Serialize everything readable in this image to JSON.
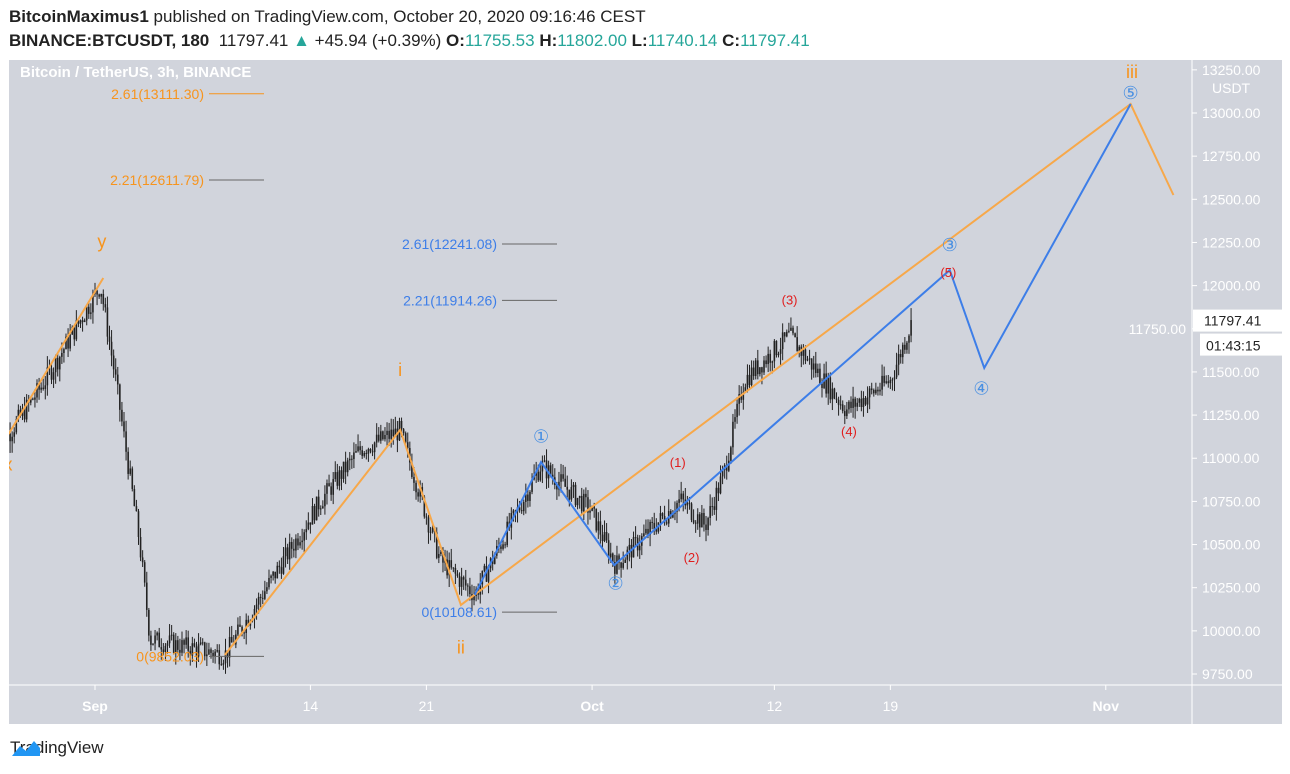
{
  "header": {
    "author": "BitcoinMaximus1",
    "published": "published on TradingView.com, October 20, 2020 09:16:46 CEST",
    "symbol": "BINANCE:BTCUSDT, 180",
    "last": "11797.41",
    "change": "+45.94 (+0.39%)",
    "o_label": "O:",
    "o": "11755.53",
    "h_label": "H:",
    "h": "11802.00",
    "l_label": "L:",
    "l": "11740.14",
    "c_label": "C:",
    "c": "11797.41"
  },
  "footer": {
    "brand": "TradingView"
  },
  "chart_data": {
    "type": "candlestick",
    "title": "Bitcoin / TetherUS, 3h, BINANCE",
    "currency": "USDT",
    "ylim": [
      9700,
      13300
    ],
    "xlim": [
      "2020-08-26",
      "2020-11-05"
    ],
    "yticks": [
      9750,
      10000,
      10250,
      10500,
      10750,
      11000,
      11250,
      11500,
      11750,
      12000,
      12250,
      12500,
      12750,
      13000,
      13250
    ],
    "ytick_labels": [
      "9750.00",
      "10000.00",
      "10250.00",
      "10500.00",
      "10750.00",
      "11000.00",
      "11250.00",
      "11500.00",
      "11750.00",
      "12000.00",
      "12250.00",
      "12500.00",
      "12750.00",
      "13000.00",
      "13250.00"
    ],
    "xticks": [
      {
        "date": "2020-09-01",
        "label": "Sep"
      },
      {
        "date": "2020-09-14",
        "label": "14"
      },
      {
        "date": "2020-09-21",
        "label": "21"
      },
      {
        "date": "2020-10-01",
        "label": "Oct"
      },
      {
        "date": "2020-10-12",
        "label": "12"
      },
      {
        "date": "2020-10-19",
        "label": "19"
      },
      {
        "date": "2020-11-01",
        "label": "Nov"
      }
    ],
    "last_price": "11797.41",
    "countdown": "01:43:15",
    "price_path": [
      [
        "2020-08-26T00",
        11500
      ],
      [
        "2020-08-26T18",
        11135
      ],
      [
        "2020-08-29T00",
        11450
      ],
      [
        "2020-09-01T08",
        12000
      ],
      [
        "2020-09-02T06",
        11450
      ],
      [
        "2020-09-03T16",
        10530
      ],
      [
        "2020-09-04T08",
        9950
      ],
      [
        "2020-09-08T20",
        9860
      ],
      [
        "2020-09-14T14",
        10750
      ],
      [
        "2020-09-17T00",
        11050
      ],
      [
        "2020-09-19T10",
        11160
      ],
      [
        "2020-09-21T20",
        10410
      ],
      [
        "2020-09-23T22",
        10210
      ],
      [
        "2020-09-27T22",
        10960
      ],
      [
        "2020-09-30T22",
        10700
      ],
      [
        "2020-10-02T10",
        10380
      ],
      [
        "2020-10-06T08",
        10760
      ],
      [
        "2020-10-07T20",
        10610
      ],
      [
        "2020-10-09T00",
        10930
      ],
      [
        "2020-10-10T04",
        11450
      ],
      [
        "2020-10-12T22",
        11710
      ],
      [
        "2020-10-16T08",
        11280
      ],
      [
        "2020-10-19T00",
        11450
      ],
      [
        "2020-10-20T08",
        11797
      ]
    ],
    "orange_lines": [
      [
        [
          "2020-08-26T00",
          11850
        ],
        [
          "2020-08-26T18",
          11135
        ],
        [
          "2020-09-01T12",
          12044
        ]
      ],
      [
        [
          "2020-09-08T20",
          9860
        ],
        [
          "2020-09-19T10",
          11164
        ],
        [
          "2020-09-23T02",
          10150
        ],
        [
          "2020-11-02T12",
          13052
        ],
        [
          "2020-11-05T02",
          12525
        ]
      ]
    ],
    "blue_lines": [
      [
        [
          "2020-09-23T22",
          10208
        ],
        [
          "2020-09-27T22",
          10978
        ],
        [
          "2020-10-02T08",
          10381
        ],
        [
          "2020-10-22T14",
          12090
        ],
        [
          "2020-10-24T16",
          11523
        ],
        [
          "2020-11-02T12",
          13052
        ]
      ]
    ],
    "orange_fibs": [
      {
        "label": "2.61(13111.30)",
        "price": 13111.3
      },
      {
        "label": "2.21(12611.79)",
        "price": 12611.79
      },
      {
        "label": "0(9852.03)",
        "price": 9852.03
      }
    ],
    "blue_fibs": [
      {
        "label": "2.61(12241.08)",
        "price": 12241.08
      },
      {
        "label": "2.21(11914.26)",
        "price": 11914.26
      },
      {
        "label": "0(10108.61)",
        "price": 10108.61
      }
    ],
    "wave_labels": [
      {
        "text": "y",
        "color": "#f7941d",
        "date": "2020-09-01T10",
        "price": 12220
      },
      {
        "text": "x",
        "color": "#f7941d",
        "date": "2020-08-26T18",
        "price": 10930
      },
      {
        "text": "i",
        "color": "#f7941d",
        "date": "2020-09-19T10",
        "price": 11475
      },
      {
        "text": "ii",
        "color": "#f7941d",
        "date": "2020-09-23T02",
        "price": 9870
      },
      {
        "text": "iii",
        "color": "#f7941d",
        "date": "2020-11-02T14",
        "price": 13270
      },
      {
        "text": "①",
        "color": "#4a90e2",
        "date": "2020-09-27T22",
        "price": 11090
      },
      {
        "text": "②",
        "color": "#4a90e2",
        "date": "2020-10-02T10",
        "price": 10240
      },
      {
        "text": "③",
        "color": "#4a90e2",
        "date": "2020-10-22T14",
        "price": 12200
      },
      {
        "text": "④",
        "color": "#4a90e2",
        "date": "2020-10-24T12",
        "price": 11370
      },
      {
        "text": "⑤",
        "color": "#4a90e2",
        "date": "2020-11-02T12",
        "price": 13160
      },
      {
        "text": "(1)",
        "color": "#e01e1e",
        "date": "2020-10-06T04",
        "price": 10950
      },
      {
        "text": "(2)",
        "color": "#e01e1e",
        "date": "2020-10-07T00",
        "price": 10400
      },
      {
        "text": "(3)",
        "color": "#e01e1e",
        "date": "2020-10-12T22",
        "price": 11890
      },
      {
        "text": "(4)",
        "color": "#e01e1e",
        "date": "2020-10-16T12",
        "price": 11130
      },
      {
        "text": "(5)",
        "color": "#e01e1e",
        "date": "2020-10-22T12",
        "price": 12050
      }
    ],
    "colors": {
      "background": "#d1d4dc",
      "orange": "#f7a84a",
      "blue": "#3d7ee8",
      "red": "#e01e1e",
      "candle": "#222222",
      "up": "#26a69a"
    }
  }
}
